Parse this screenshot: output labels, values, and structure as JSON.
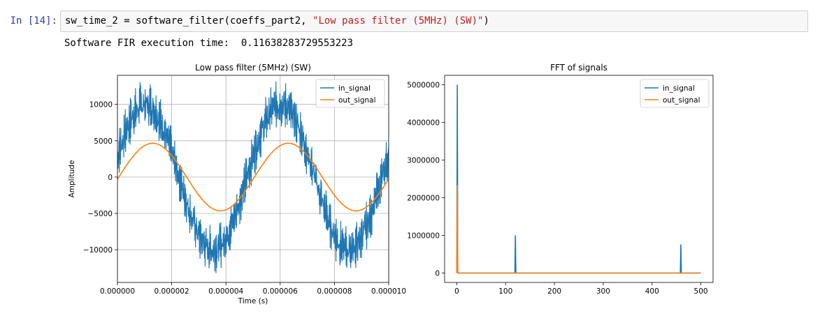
{
  "cell": {
    "prompt": "In [14]:",
    "code_prefix": "sw_time_2 = software_filter(coeffs_part2, ",
    "code_string": "\"Low pass filter (5MHz) (SW)\"",
    "code_suffix": ")"
  },
  "output": {
    "text": "Software FIR execution time:  0.11638283729553223"
  },
  "colors": {
    "prompt": "#303f9f",
    "string": "#ba2121",
    "in_signal": "#1f77b4",
    "out_signal": "#ff7f0e",
    "grid": "#b0b0b0"
  },
  "chart_data": [
    {
      "type": "line",
      "title": "Low pass filter (5MHz) (SW)",
      "xlabel": "Time (s)",
      "ylabel": "Amplitude",
      "xlim": [
        0,
        1e-05
      ],
      "ylim": [
        -14500,
        14000
      ],
      "grid": true,
      "legend": "top-right",
      "x_ticks": [
        0,
        2e-06,
        4e-06,
        6e-06,
        8e-06,
        1e-05
      ],
      "x_tick_labels": [
        "0.000000",
        "0.000002",
        "0.000004",
        "0.000006",
        "0.000008",
        "0.000010"
      ],
      "y_ticks": [
        -10000,
        -5000,
        0,
        5000,
        10000
      ],
      "y_tick_labels": [
        "−10000",
        "−5000",
        "0",
        "5000",
        "10000"
      ],
      "series": [
        {
          "name": "in_signal",
          "color": "#1f77b4",
          "sine_amplitude": 10000,
          "sine_period": 5e-06,
          "noise_amplitude": 3000
        },
        {
          "name": "out_signal",
          "color": "#ff7f0e",
          "sine_amplitude": 4650,
          "sine_period": 5e-06,
          "peaks_at": [
            1.3e-06,
            6.3e-06
          ],
          "troughs_at": [
            3.9e-06,
            8.9e-06
          ]
        }
      ]
    },
    {
      "type": "line",
      "title": "FFT of signals",
      "xlim": [
        -25,
        525
      ],
      "ylim": [
        -250000,
        5250000
      ],
      "grid": false,
      "legend": "top-right",
      "x_ticks": [
        0,
        100,
        200,
        300,
        400,
        500
      ],
      "x_tick_labels": [
        "0",
        "100",
        "200",
        "300",
        "400",
        "500"
      ],
      "y_ticks": [
        0,
        1000000,
        2000000,
        3000000,
        4000000,
        5000000
      ],
      "y_tick_labels": [
        "0",
        "1000000",
        "2000000",
        "3000000",
        "4000000",
        "5000000"
      ],
      "series": [
        {
          "name": "in_signal",
          "color": "#1f77b4",
          "x": [
            0,
            1,
            2,
            3,
            119,
            120,
            121,
            458,
            459,
            460,
            500
          ],
          "values": [
            0,
            5000000,
            0,
            0,
            0,
            1000000,
            0,
            0,
            760000,
            0,
            0
          ]
        },
        {
          "name": "out_signal",
          "color": "#ff7f0e",
          "x": [
            0,
            1,
            2,
            3,
            500
          ],
          "values": [
            0,
            2330000,
            0,
            0,
            0
          ]
        }
      ]
    }
  ]
}
